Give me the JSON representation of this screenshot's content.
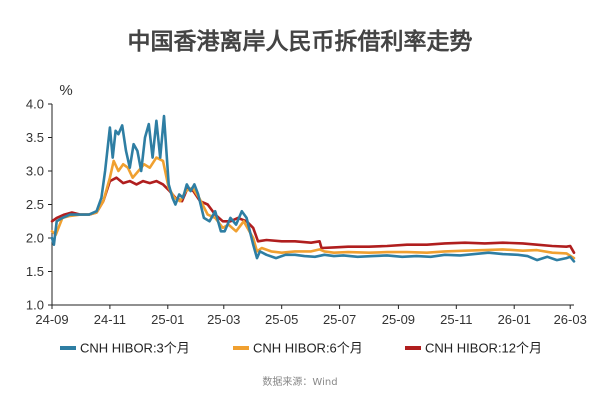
{
  "chart_data": {
    "type": "line",
    "title": "中国香港离岸人民币拆借利率走势",
    "ylabel": "%",
    "xlabel": "",
    "x_tick_labels": [
      "24-09",
      "24-11",
      "25-01",
      "25-03",
      "25-05",
      "25-07",
      "25-09",
      "25-11",
      "26-01",
      "26-03"
    ],
    "y_ticks": [
      "1.0",
      "1.5",
      "2.0",
      "2.5",
      "3.0",
      "3.5",
      "4.0"
    ],
    "ylim": [
      1.0,
      4.0
    ],
    "xlim": [
      "2024-09-01",
      "2026-03-05"
    ],
    "grid": false,
    "legend_position": "bottom",
    "source": "数据来源：Wind",
    "series": [
      {
        "name": "CNH HIBOR:3个月",
        "color": "#2e7ea3",
        "x": [
          "2024-09-01",
          "2024-09-03",
          "2024-09-06",
          "2024-09-12",
          "2024-09-20",
          "2024-10-01",
          "2024-10-10",
          "2024-10-18",
          "2024-10-23",
          "2024-10-27",
          "2024-11-01",
          "2024-11-04",
          "2024-11-07",
          "2024-11-10",
          "2024-11-14",
          "2024-11-18",
          "2024-11-22",
          "2024-11-26",
          "2024-11-30",
          "2024-12-04",
          "2024-12-08",
          "2024-12-12",
          "2024-12-16",
          "2024-12-20",
          "2024-12-24",
          "2024-12-28",
          "2025-01-02",
          "2025-01-06",
          "2025-01-09",
          "2025-01-13",
          "2025-01-17",
          "2025-01-21",
          "2025-01-25",
          "2025-01-29",
          "2025-02-02",
          "2025-02-08",
          "2025-02-14",
          "2025-02-20",
          "2025-02-26",
          "2025-03-02",
          "2025-03-08",
          "2025-03-14",
          "2025-03-20",
          "2025-03-25",
          "2025-04-01",
          "2025-04-05",
          "2025-04-08",
          "2025-04-15",
          "2025-04-25",
          "2025-05-05",
          "2025-05-15",
          "2025-05-25",
          "2025-06-05",
          "2025-06-15",
          "2025-06-25",
          "2025-07-05",
          "2025-07-20",
          "2025-08-05",
          "2025-08-20",
          "2025-09-05",
          "2025-09-20",
          "2025-10-05",
          "2025-10-20",
          "2025-11-05",
          "2025-11-20",
          "2025-12-05",
          "2025-12-20",
          "2026-01-05",
          "2026-01-15",
          "2026-01-25",
          "2026-02-05",
          "2026-02-15",
          "2026-02-25",
          "2026-03-01",
          "2026-03-05"
        ],
        "values": [
          2.0,
          1.9,
          2.25,
          2.3,
          2.35,
          2.35,
          2.35,
          2.4,
          2.6,
          3.0,
          3.65,
          3.2,
          3.6,
          3.55,
          3.68,
          3.3,
          3.05,
          3.4,
          3.3,
          3.0,
          3.5,
          3.7,
          3.2,
          3.75,
          3.2,
          3.82,
          2.8,
          2.6,
          2.5,
          2.65,
          2.6,
          2.8,
          2.7,
          2.8,
          2.65,
          2.3,
          2.25,
          2.4,
          2.1,
          2.1,
          2.3,
          2.2,
          2.4,
          2.3,
          1.9,
          1.7,
          1.8,
          1.75,
          1.7,
          1.75,
          1.75,
          1.73,
          1.72,
          1.75,
          1.73,
          1.74,
          1.72,
          1.73,
          1.74,
          1.72,
          1.73,
          1.72,
          1.75,
          1.74,
          1.76,
          1.78,
          1.76,
          1.75,
          1.73,
          1.67,
          1.72,
          1.67,
          1.7,
          1.72,
          1.65
        ]
      },
      {
        "name": "CNH HIBOR:6个月",
        "color": "#f0a030",
        "x": [
          "2024-09-01",
          "2024-09-05",
          "2024-09-12",
          "2024-09-20",
          "2024-10-01",
          "2024-10-10",
          "2024-10-18",
          "2024-10-25",
          "2024-11-01",
          "2024-11-05",
          "2024-11-10",
          "2024-11-15",
          "2024-11-20",
          "2024-11-25",
          "2024-12-01",
          "2024-12-07",
          "2024-12-13",
          "2024-12-20",
          "2024-12-27",
          "2025-01-02",
          "2025-01-08",
          "2025-01-14",
          "2025-01-20",
          "2025-01-27",
          "2025-02-03",
          "2025-02-12",
          "2025-02-20",
          "2025-02-28",
          "2025-03-06",
          "2025-03-14",
          "2025-03-22",
          "2025-04-01",
          "2025-04-05",
          "2025-04-10",
          "2025-04-20",
          "2025-05-01",
          "2025-05-15",
          "2025-06-01",
          "2025-06-10",
          "2025-06-15",
          "2025-06-25",
          "2025-07-10",
          "2025-08-01",
          "2025-08-20",
          "2025-09-10",
          "2025-10-01",
          "2025-10-20",
          "2025-11-10",
          "2025-12-01",
          "2025-12-20",
          "2026-01-10",
          "2026-01-25",
          "2026-02-10",
          "2026-02-25",
          "2026-03-05"
        ],
        "values": [
          2.1,
          2.05,
          2.3,
          2.33,
          2.35,
          2.35,
          2.38,
          2.55,
          2.9,
          3.15,
          3.0,
          3.1,
          3.05,
          2.9,
          3.0,
          3.1,
          3.05,
          3.2,
          3.15,
          2.75,
          2.6,
          2.55,
          2.7,
          2.75,
          2.6,
          2.35,
          2.3,
          2.15,
          2.2,
          2.1,
          2.25,
          2.0,
          1.8,
          1.85,
          1.8,
          1.78,
          1.8,
          1.8,
          1.83,
          1.8,
          1.78,
          1.79,
          1.78,
          1.79,
          1.79,
          1.78,
          1.8,
          1.81,
          1.82,
          1.83,
          1.81,
          1.82,
          1.78,
          1.77,
          1.7
        ]
      },
      {
        "name": "CNH HIBOR:12个月",
        "color": "#b01e1e",
        "x": [
          "2024-09-01",
          "2024-09-06",
          "2024-09-14",
          "2024-09-22",
          "2024-10-01",
          "2024-10-10",
          "2024-10-18",
          "2024-10-25",
          "2024-11-01",
          "2024-11-08",
          "2024-11-15",
          "2024-11-22",
          "2024-11-29",
          "2024-12-06",
          "2024-12-13",
          "2024-12-20",
          "2024-12-27",
          "2025-01-03",
          "2025-01-09",
          "2025-01-16",
          "2025-01-22",
          "2025-01-28",
          "2025-02-04",
          "2025-02-12",
          "2025-02-20",
          "2025-02-28",
          "2025-03-08",
          "2025-03-16",
          "2025-03-25",
          "2025-04-01",
          "2025-04-06",
          "2025-04-15",
          "2025-05-01",
          "2025-05-15",
          "2025-06-01",
          "2025-06-10",
          "2025-06-12",
          "2025-06-25",
          "2025-07-10",
          "2025-08-01",
          "2025-08-20",
          "2025-09-10",
          "2025-10-01",
          "2025-10-20",
          "2025-11-10",
          "2025-12-01",
          "2025-12-20",
          "2026-01-10",
          "2026-01-25",
          "2026-02-10",
          "2026-02-25",
          "2026-03-01",
          "2026-03-05"
        ],
        "values": [
          2.25,
          2.3,
          2.35,
          2.38,
          2.35,
          2.35,
          2.38,
          2.55,
          2.85,
          2.9,
          2.82,
          2.85,
          2.8,
          2.85,
          2.82,
          2.85,
          2.8,
          2.7,
          2.6,
          2.55,
          2.75,
          2.7,
          2.55,
          2.5,
          2.35,
          2.25,
          2.25,
          2.3,
          2.25,
          2.15,
          1.95,
          1.97,
          1.95,
          1.95,
          1.93,
          1.95,
          1.85,
          1.86,
          1.87,
          1.87,
          1.88,
          1.9,
          1.9,
          1.92,
          1.93,
          1.92,
          1.93,
          1.92,
          1.9,
          1.88,
          1.87,
          1.88,
          1.78
        ]
      }
    ]
  }
}
